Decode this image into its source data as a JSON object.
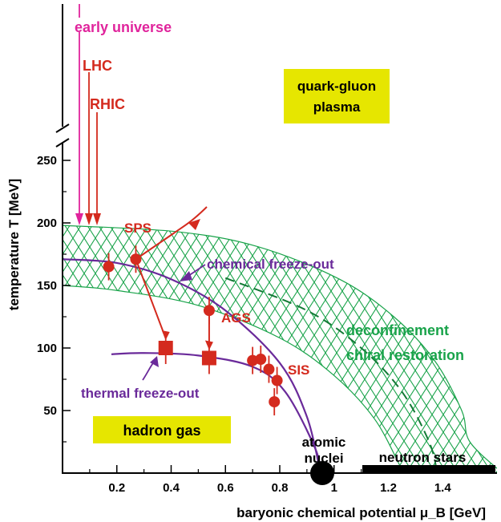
{
  "chart_data": {
    "type": "scatter",
    "title": "",
    "xlabel": "baryonic chemical potential μ_B [GeV]",
    "ylabel": "temperature T [MeV]",
    "xlim": [
      0,
      1.6
    ],
    "ylim": [
      0,
      280
    ],
    "y_axis_break": "above 260 MeV",
    "xticks": [
      "0.2",
      "0.4",
      "0.6",
      "0.8",
      "1",
      "1.2",
      "1.4"
    ],
    "xtick_values": [
      0.2,
      0.4,
      0.6,
      0.8,
      1.0,
      1.2,
      1.4
    ],
    "yticks": [
      "50",
      "100",
      "150",
      "200",
      "250"
    ],
    "ytick_values": [
      50,
      100,
      150,
      200,
      250
    ],
    "colors": {
      "experiment": "#d42a1e",
      "freezeout": "#6a2a9a",
      "band": "#19a34a",
      "early": "#e0249c",
      "label_box": "#e6e600",
      "black": "#000000"
    },
    "chemical_points": [
      {
        "x": 0.17,
        "y": 165
      },
      {
        "x": 0.27,
        "y": 171
      },
      {
        "x": 0.54,
        "y": 130
      },
      {
        "x": 0.7,
        "y": 90
      },
      {
        "x": 0.73,
        "y": 91
      },
      {
        "x": 0.76,
        "y": 83
      },
      {
        "x": 0.79,
        "y": 74
      },
      {
        "x": 0.78,
        "y": 57
      }
    ],
    "thermal_points": [
      {
        "x": 0.38,
        "y": 100
      },
      {
        "x": 0.54,
        "y": 92
      }
    ],
    "chemical_freezeout_curve": [
      [
        0,
        171
      ],
      [
        0.2,
        168
      ],
      [
        0.4,
        155
      ],
      [
        0.6,
        130
      ],
      [
        0.8,
        88
      ],
      [
        0.9,
        45
      ],
      [
        0.95,
        0
      ]
    ],
    "thermal_freezeout_curve": [
      [
        0.18,
        95
      ],
      [
        0.3,
        96
      ],
      [
        0.5,
        94
      ],
      [
        0.7,
        85
      ],
      [
        0.82,
        65
      ],
      [
        0.93,
        20
      ],
      [
        0.95,
        0
      ]
    ],
    "deconfinement_boundary": [
      [
        0,
        172
      ],
      [
        0.3,
        168
      ],
      [
        0.6,
        156
      ],
      [
        0.9,
        130
      ],
      [
        1.1,
        100
      ],
      [
        1.25,
        65
      ],
      [
        1.35,
        25
      ],
      [
        1.38,
        0
      ]
    ],
    "labels": {
      "early_universe": "early universe",
      "lhc": "LHC",
      "rhic": "RHIC",
      "sps": "SPS",
      "ags": "AGS",
      "sis": "SIS",
      "qgp_line1": "quark-gluon",
      "qgp_line2": "plasma",
      "hadron_gas": "hadron gas",
      "chemical_freezeout": "chemical freeze-out",
      "thermal_freezeout": "thermal freeze-out",
      "deconfinement": "deconfinement",
      "chiral": "chiral restoration",
      "atomic_line1": "atomic",
      "atomic_line2": "nuclei",
      "neutron_stars": "neutron stars"
    }
  }
}
